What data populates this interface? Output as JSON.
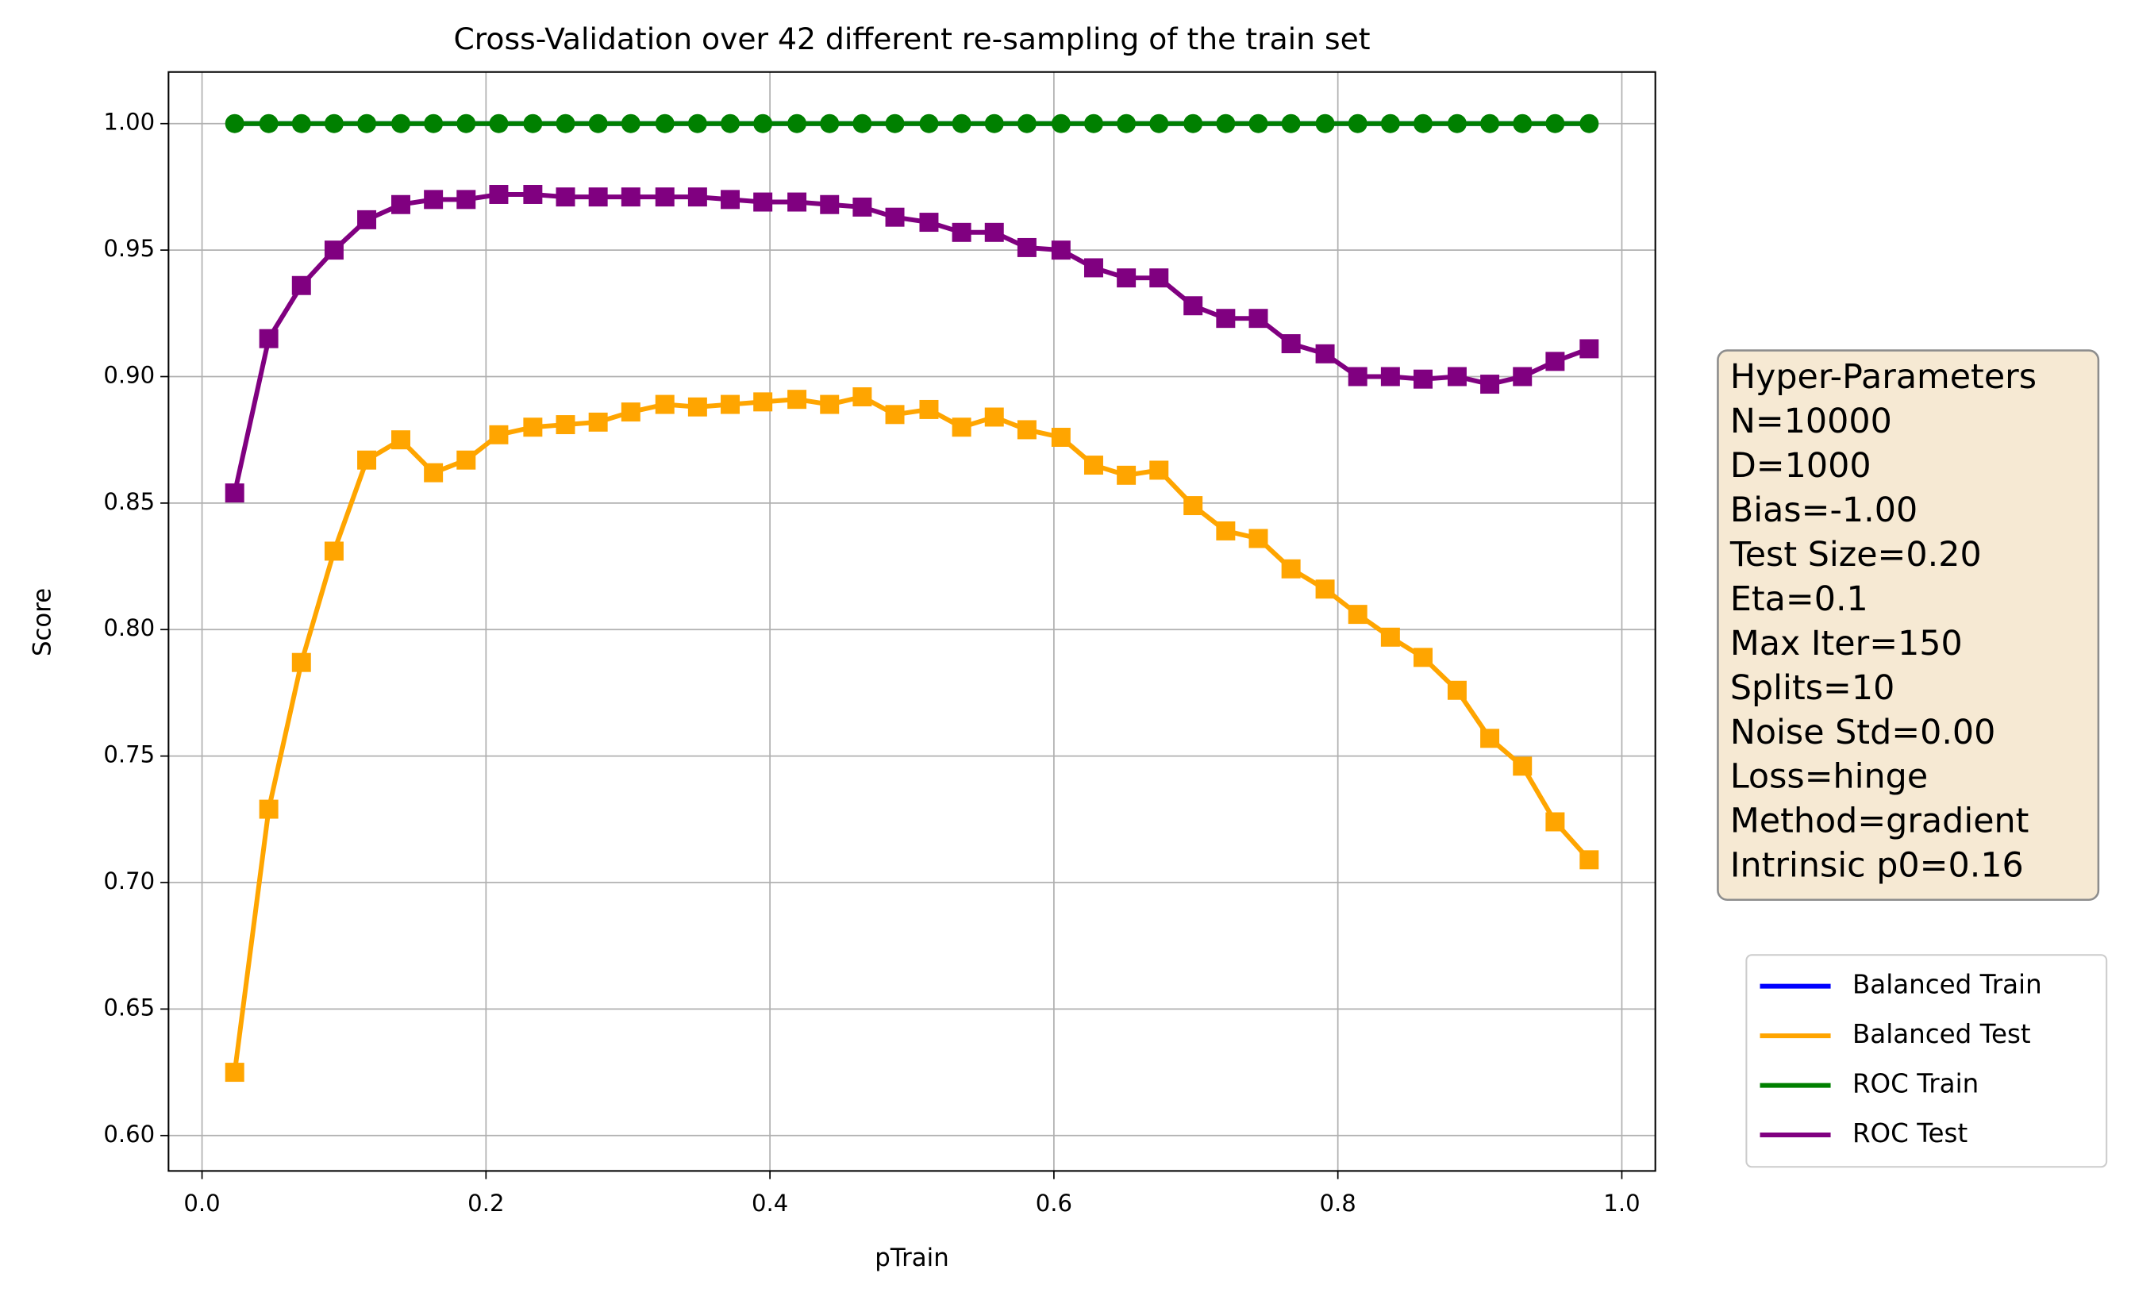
{
  "chart_data": {
    "type": "line",
    "title": "Cross-Validation over 42 different re-sampling of the train set",
    "xlabel": "pTrain",
    "ylabel": "Score",
    "x": [
      0.023,
      0.047,
      0.07,
      0.093,
      0.116,
      0.14,
      0.163,
      0.186,
      0.209,
      0.233,
      0.256,
      0.279,
      0.302,
      0.326,
      0.349,
      0.372,
      0.395,
      0.419,
      0.442,
      0.465,
      0.488,
      0.512,
      0.535,
      0.558,
      0.581,
      0.605,
      0.628,
      0.651,
      0.674,
      0.698,
      0.721,
      0.744,
      0.767,
      0.791,
      0.814,
      0.837,
      0.86,
      0.884,
      0.907,
      0.93,
      0.953,
      0.977
    ],
    "series": [
      {
        "name": "Balanced Train",
        "color": "#0000ff",
        "marker": "none",
        "values": [
          1,
          1,
          1,
          1,
          1,
          1,
          1,
          1,
          1,
          1,
          1,
          1,
          1,
          1,
          1,
          1,
          1,
          1,
          1,
          1,
          1,
          1,
          1,
          1,
          1,
          1,
          1,
          1,
          1,
          1,
          1,
          1,
          1,
          1,
          1,
          1,
          1,
          1,
          1,
          1,
          1,
          1
        ]
      },
      {
        "name": "Balanced Test",
        "color": "#ffa500",
        "marker": "square",
        "values": [
          0.625,
          0.729,
          0.787,
          0.831,
          0.867,
          0.875,
          0.862,
          0.867,
          0.877,
          0.88,
          0.881,
          0.882,
          0.886,
          0.889,
          0.888,
          0.889,
          0.89,
          0.891,
          0.889,
          0.892,
          0.885,
          0.887,
          0.88,
          0.884,
          0.879,
          0.876,
          0.865,
          0.861,
          0.863,
          0.849,
          0.839,
          0.836,
          0.824,
          0.816,
          0.806,
          0.797,
          0.789,
          0.776,
          0.757,
          0.746,
          0.724,
          0.709
        ]
      },
      {
        "name": "ROC Train",
        "color": "#008000",
        "marker": "circle",
        "values": [
          1,
          1,
          1,
          1,
          1,
          1,
          1,
          1,
          1,
          1,
          1,
          1,
          1,
          1,
          1,
          1,
          1,
          1,
          1,
          1,
          1,
          1,
          1,
          1,
          1,
          1,
          1,
          1,
          1,
          1,
          1,
          1,
          1,
          1,
          1,
          1,
          1,
          1,
          1,
          1,
          1,
          1
        ]
      },
      {
        "name": "ROC Test",
        "color": "#800080",
        "marker": "square",
        "values": [
          0.854,
          0.915,
          0.936,
          0.95,
          0.962,
          0.968,
          0.97,
          0.97,
          0.972,
          0.972,
          0.971,
          0.971,
          0.971,
          0.971,
          0.971,
          0.97,
          0.969,
          0.969,
          0.968,
          0.967,
          0.963,
          0.961,
          0.957,
          0.957,
          0.951,
          0.95,
          0.943,
          0.939,
          0.939,
          0.928,
          0.923,
          0.923,
          0.913,
          0.909,
          0.9,
          0.9,
          0.899,
          0.9,
          0.897,
          0.9,
          0.906,
          0.911
        ]
      }
    ],
    "xlim": [
      -0.0236,
      1.0236
    ],
    "ylim": [
      0.586,
      1.0204
    ],
    "xticks": [
      {
        "value": 0,
        "label": "0.0"
      },
      0.2,
      0.4,
      0.6,
      0.8,
      {
        "value": 1,
        "label": "1.0"
      }
    ],
    "yticks": [
      {
        "value": 0.6,
        "label": "0.60"
      },
      {
        "value": 0.65,
        "label": "0.65"
      },
      {
        "value": 0.7,
        "label": "0.70"
      },
      0.75,
      {
        "value": 0.8,
        "label": "0.80"
      },
      0.85,
      {
        "value": 0.9,
        "label": "0.90"
      },
      0.95,
      {
        "value": 1,
        "label": "1.00"
      }
    ],
    "grid": true,
    "legend": "lower right outside",
    "textbox": [
      "Hyper-Parameters",
      "N=10000",
      "D=1000",
      "Bias=-1.00",
      "Test Size=0.20",
      "Eta=0.1",
      "Max Iter=150",
      "Splits=10",
      "Noise Std=0.00",
      "Loss=hinge",
      "Method=gradient",
      "Intrinsic p0=0.16"
    ]
  }
}
